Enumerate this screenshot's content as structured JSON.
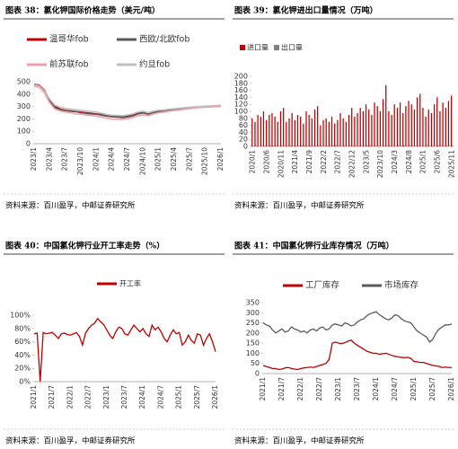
{
  "chart_data": [
    {
      "type": "line",
      "title": "图表 38：氯化钾国际价格走势（美元/吨）",
      "source": "资料来源：百川盈孚，中邮证券研究所",
      "categories": [
        "2023/1",
        null,
        null,
        "2023/4",
        null,
        null,
        "2023/7",
        null,
        null,
        "2023/10",
        null,
        null,
        "2024/1",
        null,
        null,
        "2024/4",
        null,
        null,
        "2024/7",
        null,
        null,
        "2024/10",
        null,
        null,
        "2025/1",
        null,
        null,
        "2025/4",
        null,
        null,
        "2025/7",
        null,
        null,
        "2025/10",
        null,
        null,
        "2026/1"
      ],
      "ylim": [
        0,
        500
      ],
      "yticks": [
        0,
        100,
        200,
        300,
        400,
        500
      ],
      "grid": false,
      "series": [
        {
          "name": "温哥华fob",
          "color": "#c00000",
          "values": [
            480,
            470,
            430,
            350,
            300,
            280,
            270,
            265,
            260,
            255,
            250,
            245,
            240,
            235,
            225,
            220,
            218,
            215,
            220,
            230,
            245,
            250,
            240,
            255,
            262,
            265,
            270,
            275,
            280,
            285,
            290,
            295,
            298,
            300,
            302,
            305,
            308
          ]
        },
        {
          "name": "西欧/北欧fob",
          "color": "#595959",
          "values": [
            470,
            460,
            420,
            340,
            290,
            275,
            268,
            262,
            258,
            250,
            245,
            240,
            238,
            230,
            222,
            218,
            215,
            210,
            215,
            225,
            240,
            248,
            238,
            252,
            258,
            262,
            268,
            272,
            278,
            282,
            288,
            292,
            295,
            297,
            300,
            302,
            305
          ]
        },
        {
          "name": "前苏联fob",
          "color": "#f2a0a8",
          "values": [
            465,
            455,
            410,
            330,
            280,
            265,
            255,
            250,
            240,
            238,
            232,
            228,
            222,
            215,
            205,
            200,
            198,
            195,
            200,
            212,
            225,
            232,
            225,
            240,
            250,
            255,
            262,
            268,
            272,
            278,
            282,
            288,
            292,
            294,
            296,
            298,
            300
          ]
        },
        {
          "name": "约旦fob",
          "color": "#bfbfbf",
          "values": [
            475,
            465,
            425,
            360,
            310,
            295,
            285,
            280,
            275,
            270,
            265,
            260,
            255,
            245,
            235,
            230,
            228,
            225,
            232,
            240,
            255,
            262,
            250,
            262,
            270,
            272,
            278,
            282,
            286,
            290,
            294,
            298,
            300,
            303,
            305,
            308,
            310
          ]
        }
      ]
    },
    {
      "type": "bar",
      "title": "图表 39：氯化钾进出口量情况（万吨）",
      "source": "资料来源：百川盈孚，中邮证券研究所",
      "categories": [
        "2020/1",
        null,
        null,
        null,
        null,
        "2020/6",
        null,
        null,
        null,
        null,
        "2020/11",
        null,
        null,
        null,
        null,
        "2021/4",
        null,
        null,
        null,
        null,
        "2021/9",
        null,
        null,
        null,
        null,
        "2022/2",
        null,
        null,
        null,
        null,
        "2022/7",
        null,
        null,
        null,
        null,
        "2022/12",
        null,
        null,
        null,
        null,
        "2023/5",
        null,
        null,
        null,
        null,
        "2023/10",
        null,
        null,
        null,
        null,
        "2024/3",
        null,
        null,
        null,
        null,
        "2024/8",
        null,
        null,
        null,
        null,
        "2025/1",
        null,
        null,
        null,
        null,
        "2025/6",
        null,
        null,
        null,
        null,
        "2025/11"
      ],
      "ylim": [
        0,
        200
      ],
      "yticks": [
        0,
        20,
        40,
        60,
        80,
        100,
        120,
        140,
        160,
        180,
        200
      ],
      "grid": false,
      "series": [
        {
          "name": "进口量",
          "color": "#c00000",
          "values": [
            80,
            70,
            90,
            85,
            100,
            75,
            90,
            95,
            85,
            70,
            100,
            110,
            70,
            80,
            95,
            75,
            90,
            85,
            65,
            100,
            90,
            80,
            105,
            115,
            60,
            75,
            80,
            70,
            85,
            65,
            75,
            95,
            80,
            70,
            90,
            110,
            85,
            95,
            110,
            100,
            120,
            105,
            90,
            125,
            115,
            100,
            135,
            175,
            100,
            90,
            120,
            110,
            125,
            95,
            115,
            130,
            120,
            105,
            140,
            150,
            110,
            85,
            105,
            95,
            120,
            140,
            100,
            125,
            110,
            130,
            145
          ]
        },
        {
          "name": "出口量",
          "color": "#7f7f7f",
          "values": [
            1,
            2,
            1,
            1,
            2,
            1,
            3,
            2,
            1,
            1,
            2,
            1,
            1,
            2,
            2,
            1,
            1,
            3,
            2,
            1,
            2,
            1,
            1,
            2,
            1,
            1,
            2,
            1,
            3,
            2,
            1,
            1,
            2,
            1,
            2,
            1,
            1,
            2,
            1,
            1,
            3,
            2,
            1,
            2,
            1,
            1,
            2,
            1,
            2,
            1,
            1,
            2,
            1,
            3,
            1,
            2,
            1,
            1,
            2,
            1,
            1,
            2,
            1,
            2,
            1,
            3,
            1,
            1,
            2,
            1,
            2
          ]
        }
      ]
    },
    {
      "type": "line",
      "title": "图表 40：中国氯化钾行业开工率走势（%）",
      "source": "资料来源：百川盈孚，中邮证券研究所",
      "categories": [
        "2021/1",
        null,
        null,
        null,
        null,
        null,
        "2021/7",
        null,
        null,
        null,
        null,
        null,
        "2022/1",
        null,
        null,
        null,
        null,
        null,
        "2022/7",
        null,
        null,
        null,
        null,
        null,
        "2023/1",
        null,
        null,
        null,
        null,
        null,
        "2023/7",
        null,
        null,
        null,
        null,
        null,
        "2024/1",
        null,
        null,
        null,
        null,
        null,
        "2024/7",
        null,
        null,
        null,
        null,
        null,
        "2025/1",
        null,
        null,
        null,
        null,
        null,
        "2025/7",
        null,
        null,
        null,
        null,
        null,
        "2026/1"
      ],
      "ylim": [
        0,
        100
      ],
      "yticks": [
        {
          "value": 0,
          "label": "0%"
        },
        {
          "value": 20,
          "label": "20%"
        },
        {
          "value": 40,
          "label": "40%"
        },
        {
          "value": 60,
          "label": "60%"
        },
        {
          "value": 80,
          "label": "80%"
        },
        {
          "value": 100,
          "label": "100%"
        }
      ],
      "grid": false,
      "series": [
        {
          "name": "开工率",
          "color": "#c00000",
          "values": [
            72,
            73,
            0,
            74,
            72,
            73,
            74,
            70,
            65,
            72,
            73,
            71,
            70,
            72,
            74,
            68,
            55,
            73,
            80,
            85,
            88,
            95,
            90,
            86,
            78,
            70,
            65,
            75,
            82,
            80,
            72,
            70,
            78,
            85,
            80,
            75,
            80,
            72,
            68,
            85,
            78,
            82,
            75,
            65,
            60,
            70,
            78,
            72,
            74,
            55,
            60,
            70,
            62,
            58,
            72,
            70,
            55,
            65,
            72,
            60,
            45
          ]
        }
      ]
    },
    {
      "type": "line",
      "title": "图表 41：中国氯化钾行业库存情况（万吨）",
      "source": "资料来源：百川盈孚，中邮证券研究所",
      "categories": [
        "2021/1",
        null,
        null,
        null,
        null,
        null,
        "2021/7",
        null,
        null,
        null,
        null,
        null,
        "2022/1",
        null,
        null,
        null,
        null,
        null,
        "2022/7",
        null,
        null,
        null,
        null,
        null,
        "2023/1",
        null,
        null,
        null,
        null,
        null,
        "2023/7",
        null,
        null,
        null,
        null,
        null,
        "2024/1",
        null,
        null,
        null,
        null,
        null,
        "2024/7",
        null,
        null,
        null,
        null,
        null,
        "2025/1",
        null,
        null,
        null,
        null,
        null,
        "2025/7",
        null,
        null,
        null,
        null,
        null,
        "2026/1"
      ],
      "ylim": [
        0,
        350
      ],
      "yticks": [
        0,
        50,
        100,
        150,
        200,
        250,
        300,
        350
      ],
      "grid": false,
      "series": [
        {
          "name": "工厂库存",
          "color": "#c00000",
          "values": [
            40,
            35,
            30,
            25,
            25,
            20,
            22,
            28,
            30,
            25,
            22,
            20,
            25,
            28,
            30,
            32,
            30,
            35,
            40,
            45,
            50,
            70,
            150,
            155,
            150,
            148,
            152,
            160,
            165,
            150,
            140,
            130,
            120,
            110,
            105,
            100,
            100,
            95,
            98,
            100,
            95,
            90,
            85,
            82,
            80,
            78,
            80,
            75,
            60,
            58,
            55,
            55,
            50,
            45,
            40,
            38,
            35,
            30,
            32,
            30,
            30
          ]
        },
        {
          "name": "市场库存",
          "color": "#595959",
          "values": [
            250,
            240,
            235,
            215,
            200,
            210,
            220,
            205,
            210,
            230,
            220,
            215,
            205,
            210,
            200,
            215,
            220,
            210,
            225,
            230,
            215,
            220,
            240,
            245,
            240,
            235,
            250,
            245,
            235,
            240,
            255,
            265,
            270,
            285,
            295,
            300,
            305,
            290,
            280,
            270,
            265,
            275,
            290,
            285,
            270,
            260,
            255,
            250,
            230,
            210,
            200,
            190,
            180,
            155,
            170,
            200,
            220,
            230,
            240,
            240,
            245
          ]
        }
      ]
    }
  ]
}
